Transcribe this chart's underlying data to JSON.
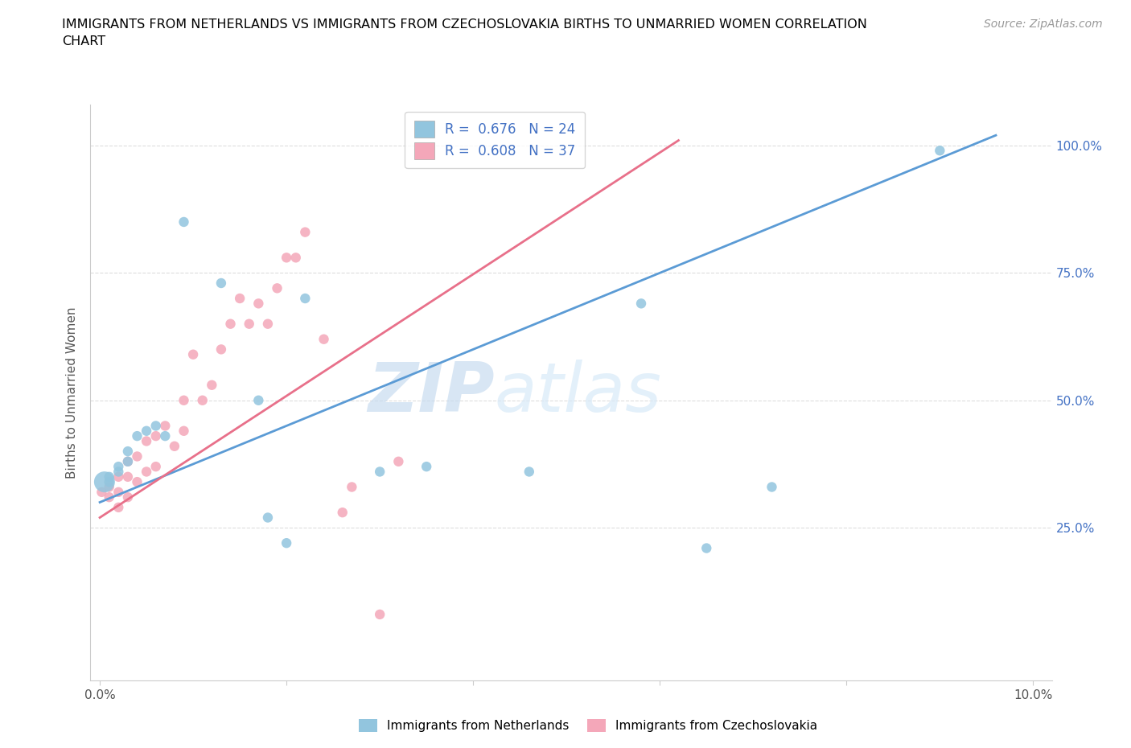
{
  "title": "IMMIGRANTS FROM NETHERLANDS VS IMMIGRANTS FROM CZECHOSLOVAKIA BIRTHS TO UNMARRIED WOMEN CORRELATION\nCHART",
  "source_text": "Source: ZipAtlas.com",
  "ylabel": "Births to Unmarried Women",
  "xlim": [
    -0.001,
    0.102
  ],
  "ylim": [
    -0.05,
    1.08
  ],
  "xtick_positions": [
    0.0,
    0.02,
    0.04,
    0.06,
    0.08,
    0.1
  ],
  "xticklabels": [
    "0.0%",
    "",
    "",
    "",
    "",
    "10.0%"
  ],
  "ytick_positions": [
    0.25,
    0.5,
    0.75,
    1.0
  ],
  "yticklabels": [
    "25.0%",
    "50.0%",
    "75.0%",
    "100.0%"
  ],
  "watermark_zip": "ZIP",
  "watermark_atlas": "atlas",
  "legend_r1": "R =  0.676",
  "legend_n1": "N = 24",
  "legend_r2": "R =  0.608",
  "legend_n2": "N = 37",
  "color_netherlands": "#92C5DE",
  "color_czechoslovakia": "#F4A7B9",
  "trendline_color_netherlands": "#5B9BD5",
  "trendline_color_czechoslovakia": "#E8708A",
  "grid_color": "#DDDDDD",
  "background_color": "#FFFFFF",
  "netherlands_x": [
    0.0005,
    0.001,
    0.001,
    0.002,
    0.002,
    0.003,
    0.003,
    0.004,
    0.005,
    0.006,
    0.007,
    0.009,
    0.013,
    0.017,
    0.018,
    0.02,
    0.022,
    0.03,
    0.035,
    0.046,
    0.058,
    0.065,
    0.072,
    0.09
  ],
  "netherlands_y": [
    0.34,
    0.34,
    0.35,
    0.36,
    0.37,
    0.38,
    0.4,
    0.43,
    0.44,
    0.45,
    0.43,
    0.85,
    0.73,
    0.5,
    0.27,
    0.22,
    0.7,
    0.36,
    0.37,
    0.36,
    0.69,
    0.21,
    0.33,
    0.99
  ],
  "netherlands_sizes": [
    350,
    80,
    80,
    80,
    80,
    80,
    80,
    80,
    80,
    80,
    80,
    80,
    80,
    80,
    80,
    80,
    80,
    80,
    80,
    80,
    80,
    80,
    80,
    80
  ],
  "czechoslovakia_x": [
    0.0002,
    0.001,
    0.001,
    0.002,
    0.002,
    0.002,
    0.003,
    0.003,
    0.003,
    0.004,
    0.004,
    0.005,
    0.005,
    0.006,
    0.006,
    0.007,
    0.008,
    0.009,
    0.009,
    0.01,
    0.011,
    0.012,
    0.013,
    0.014,
    0.015,
    0.016,
    0.017,
    0.018,
    0.019,
    0.02,
    0.021,
    0.022,
    0.024,
    0.026,
    0.027,
    0.03,
    0.032
  ],
  "czechoslovakia_y": [
    0.32,
    0.31,
    0.33,
    0.29,
    0.32,
    0.35,
    0.31,
    0.35,
    0.38,
    0.34,
    0.39,
    0.36,
    0.42,
    0.37,
    0.43,
    0.45,
    0.41,
    0.44,
    0.5,
    0.59,
    0.5,
    0.53,
    0.6,
    0.65,
    0.7,
    0.65,
    0.69,
    0.65,
    0.72,
    0.78,
    0.78,
    0.83,
    0.62,
    0.28,
    0.33,
    0.08,
    0.38
  ],
  "czechoslovakia_sizes": [
    80,
    80,
    80,
    80,
    80,
    80,
    80,
    80,
    80,
    80,
    80,
    80,
    80,
    80,
    80,
    80,
    80,
    80,
    80,
    80,
    80,
    80,
    80,
    80,
    80,
    80,
    80,
    80,
    80,
    80,
    80,
    80,
    80,
    80,
    80,
    80,
    80
  ],
  "nl_trend_x": [
    0.0,
    0.096
  ],
  "nl_trend_y": [
    0.3,
    1.02
  ],
  "cz_trend_x": [
    0.0,
    0.062
  ],
  "cz_trend_y": [
    0.27,
    1.01
  ]
}
